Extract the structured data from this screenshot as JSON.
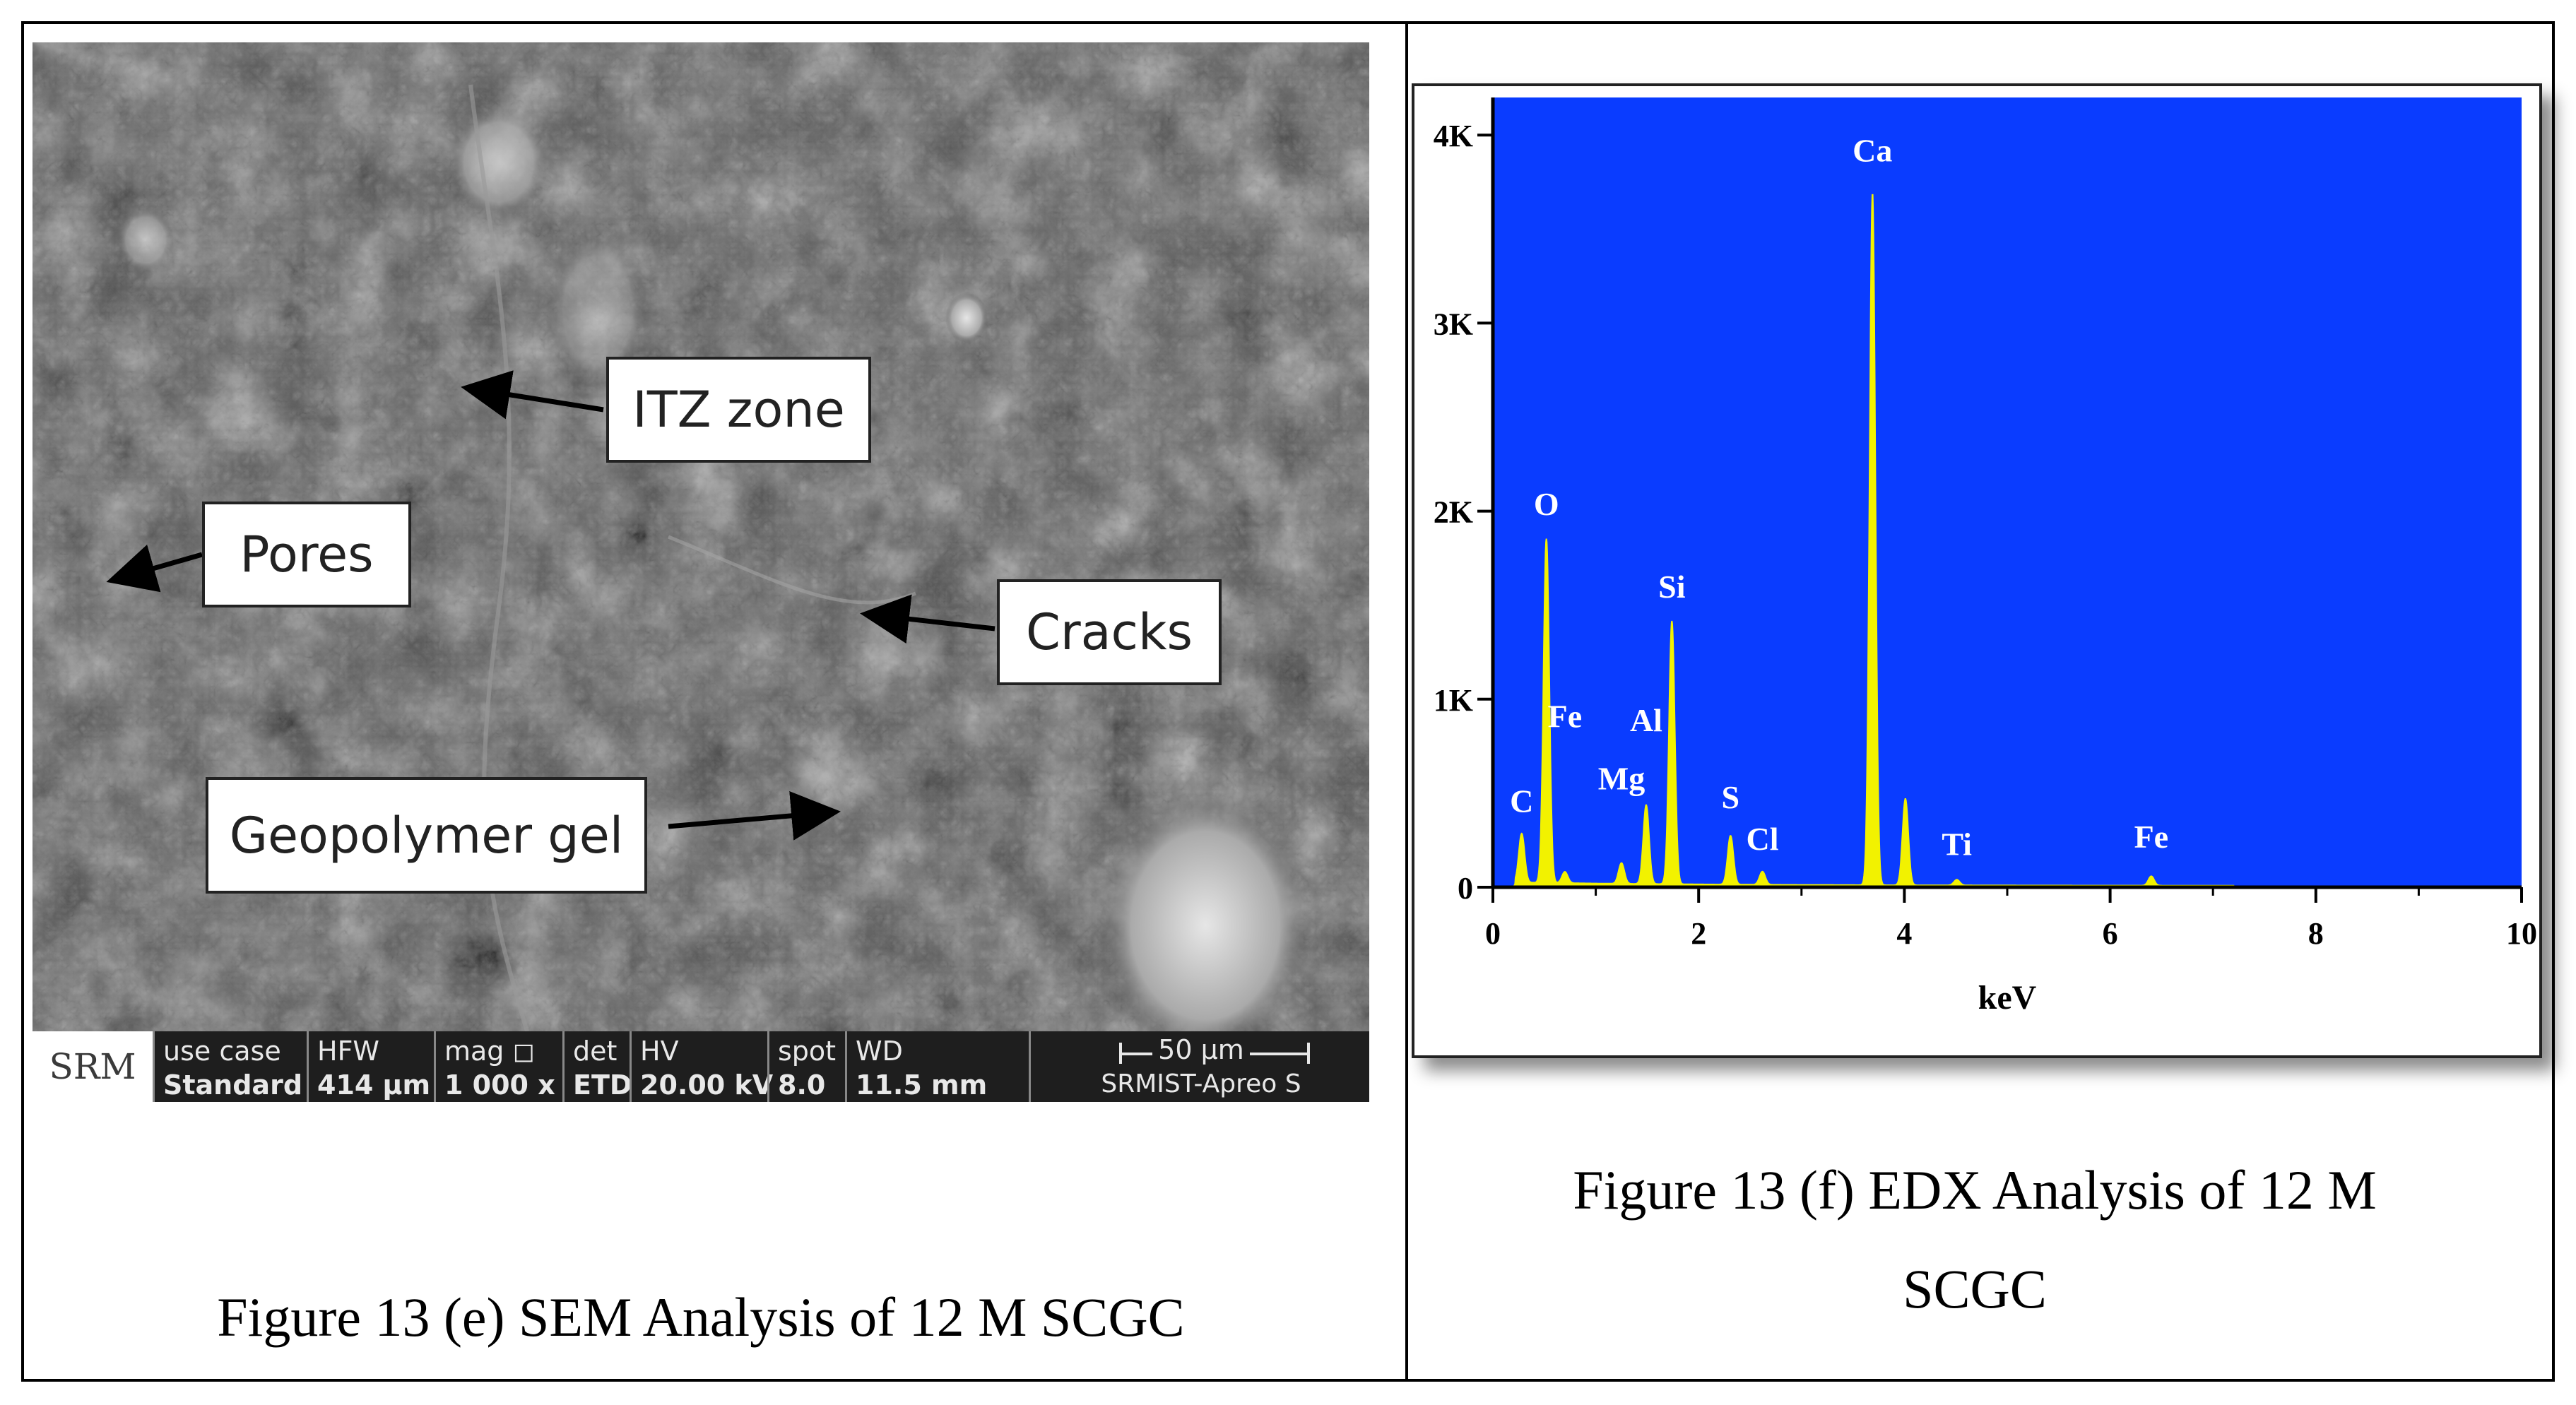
{
  "sem": {
    "labels": {
      "itz": "ITZ zone",
      "pores": "Pores",
      "cracks": "Cracks",
      "gel": "Geopolymer gel"
    },
    "databar": {
      "logo": "SRM",
      "columns": [
        {
          "header": "use case",
          "value": "Standard"
        },
        {
          "header": "HFW",
          "value": "414 μm"
        },
        {
          "header": "mag ◻",
          "value": "1 000 x"
        },
        {
          "header": "det",
          "value": "ETD"
        },
        {
          "header": "HV",
          "value": "20.00 kV"
        },
        {
          "header": "spot",
          "value": "8.0"
        },
        {
          "header": "WD",
          "value": "11.5 mm"
        }
      ],
      "scale": "50 μm",
      "instrument": "SRMIST-Apreo S"
    },
    "caption": "Figure 13 (e) SEM Analysis of 12 M SCGC"
  },
  "edx": {
    "caption_line1": "Figure 13 (f) EDX Analysis of 12 M",
    "caption_line2": "SCGC",
    "colors": {
      "background": "#0a3cff",
      "spectrum": "#f2f200"
    }
  },
  "chart_data": {
    "type": "line",
    "xlabel": "keV",
    "ylabel": "",
    "xlim": [
      0,
      10
    ],
    "ylim": [
      0,
      4200
    ],
    "xticks": [
      0,
      2,
      4,
      6,
      8,
      10
    ],
    "yticks": [
      {
        "value": 0,
        "label": "0"
      },
      {
        "value": 1000,
        "label": "1K"
      },
      {
        "value": 2000,
        "label": "2K"
      },
      {
        "value": 3000,
        "label": "3K"
      },
      {
        "value": 4000,
        "label": "4K"
      }
    ],
    "grid": false,
    "peaks": [
      {
        "element": "C",
        "energy": 0.28,
        "counts": 260
      },
      {
        "element": "O",
        "energy": 0.52,
        "counts": 1830
      },
      {
        "element": "Fe",
        "energy": 0.7,
        "counts": 60
      },
      {
        "element": "Mg",
        "energy": 1.25,
        "counts": 110
      },
      {
        "element": "Al",
        "energy": 1.49,
        "counts": 420
      },
      {
        "element": "Si",
        "energy": 1.74,
        "counts": 1400
      },
      {
        "element": "S",
        "energy": 2.31,
        "counts": 260
      },
      {
        "element": "Cl",
        "energy": 2.62,
        "counts": 70
      },
      {
        "element": "Ca",
        "energy": 3.69,
        "counts": 3680
      },
      {
        "element": "Ca Kβ",
        "energy": 4.01,
        "counts": 460
      },
      {
        "element": "Ti",
        "energy": 4.51,
        "counts": 30
      },
      {
        "element": "Fe",
        "energy": 6.4,
        "counts": 50
      }
    ],
    "labels": [
      {
        "text": "C",
        "energy": 0.28,
        "counts": 400
      },
      {
        "text": "O",
        "energy": 0.52,
        "counts": 1980
      },
      {
        "text": "Fe",
        "energy": 0.7,
        "counts": 850
      },
      {
        "text": "Mg",
        "energy": 1.25,
        "counts": 520
      },
      {
        "text": "Al",
        "energy": 1.49,
        "counts": 830
      },
      {
        "text": "Si",
        "energy": 1.74,
        "counts": 1540
      },
      {
        "text": "S",
        "energy": 2.31,
        "counts": 420
      },
      {
        "text": "Cl",
        "energy": 2.62,
        "counts": 200
      },
      {
        "text": "Ca",
        "energy": 3.69,
        "counts": 3860
      },
      {
        "text": "Ti",
        "energy": 4.51,
        "counts": 170
      },
      {
        "text": "Fe",
        "energy": 6.4,
        "counts": 210
      }
    ]
  }
}
